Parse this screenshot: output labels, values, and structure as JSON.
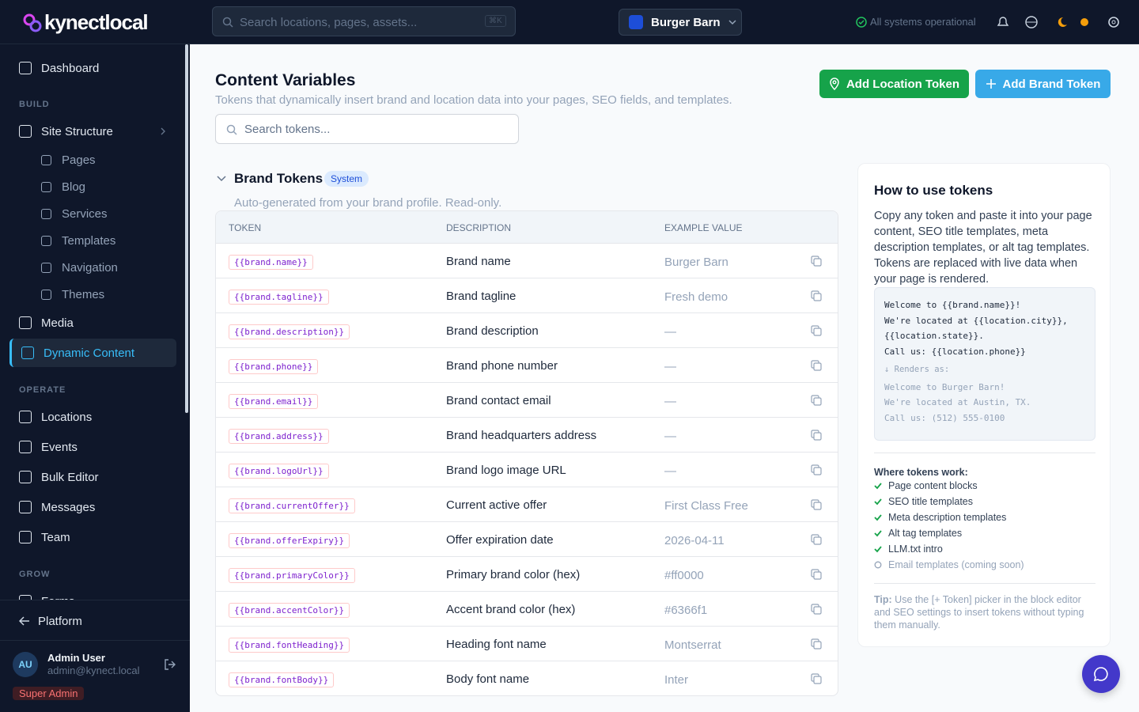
{
  "header": {
    "logo": "kynectlocal",
    "search_placeholder": "Search locations, pages, assets...",
    "shortcut": "⌘K",
    "brand_switcher": "Burger Barn",
    "status": "All systems operational"
  },
  "sidebar": {
    "top_item": "Dashboard",
    "sections": [
      {
        "title": "BUILD",
        "items": [
          {
            "label": "Site Structure",
            "children": [
              "Pages",
              "Blog",
              "Services",
              "Templates",
              "Navigation",
              "Themes"
            ]
          },
          {
            "label": "Media"
          },
          {
            "label": "Dynamic Content"
          }
        ]
      },
      {
        "title": "OPERATE",
        "items": [
          {
            "label": "Locations"
          },
          {
            "label": "Events"
          },
          {
            "label": "Bulk Editor"
          },
          {
            "label": "Messages"
          },
          {
            "label": "Team"
          }
        ]
      },
      {
        "title": "GROW",
        "items": [
          {
            "label": "Forms"
          }
        ]
      }
    ],
    "active_item": "Dynamic Content",
    "platform": "Platform",
    "user": {
      "initials": "AU",
      "name": "Admin User",
      "email": "admin@kynect.local",
      "role": "Super Admin"
    }
  },
  "page": {
    "title": "Content Variables",
    "subtitle": "Tokens that dynamically insert brand and location data into your pages, SEO fields, and templates.",
    "buttons": [
      "Add Location Token",
      "Add Brand Token"
    ],
    "search_placeholder": "Search tokens..."
  },
  "brand_tokens": {
    "title": "Brand Tokens",
    "badge": "System",
    "description": "Auto-generated from your brand profile. Read-only.",
    "columns": [
      "TOKEN",
      "DESCRIPTION",
      "EXAMPLE VALUE"
    ],
    "rows": [
      [
        "{{brand.name}}",
        "Brand name",
        "Burger Barn"
      ],
      [
        "{{brand.tagline}}",
        "Brand tagline",
        "Fresh demo"
      ],
      [
        "{{brand.description}}",
        "Brand description",
        "—"
      ],
      [
        "{{brand.phone}}",
        "Brand phone number",
        "—"
      ],
      [
        "{{brand.email}}",
        "Brand contact email",
        "—"
      ],
      [
        "{{brand.address}}",
        "Brand headquarters address",
        "—"
      ],
      [
        "{{brand.logoUrl}}",
        "Brand logo image URL",
        "—"
      ],
      [
        "{{brand.currentOffer}}",
        "Current active offer",
        "First Class Free"
      ],
      [
        "{{brand.offerExpiry}}",
        "Offer expiration date",
        "2026-04-11"
      ],
      [
        "{{brand.primaryColor}}",
        "Primary brand color (hex)",
        "#ff0000"
      ],
      [
        "{{brand.accentColor}}",
        "Accent brand color (hex)",
        "#6366f1"
      ],
      [
        "{{brand.fontHeading}}",
        "Heading font name",
        "Montserrat"
      ],
      [
        "{{brand.fontBody}}",
        "Body font name",
        "Inter"
      ]
    ]
  },
  "help": {
    "title": "How to use tokens",
    "body": "Copy any token and paste it into your page content, SEO title templates, meta description templates, or alt tag templates. Tokens are replaced with live data when your page is rendered.",
    "code_lines": [
      "Welcome to {{brand.name}}!",
      "We're located at {{location.city}},",
      "{{location.state}}.",
      "Call us: {{location.phone}}"
    ],
    "renders_label": "↓ Renders as:",
    "rendered_lines": [
      "Welcome to Burger Barn!",
      "We're located at Austin, TX.",
      "Call us: (512) 555-0100"
    ],
    "where_title": "Where tokens work:",
    "where_items": [
      "Page content blocks",
      "SEO title templates",
      "Meta description templates",
      "Alt tag templates",
      "LLM.txt intro"
    ],
    "coming_soon": "Email templates (coming soon)",
    "tip_label": "Tip:",
    "tip": "Use the [+ Token] picker in the block editor and SEO settings to insert tokens without typing them manually."
  }
}
